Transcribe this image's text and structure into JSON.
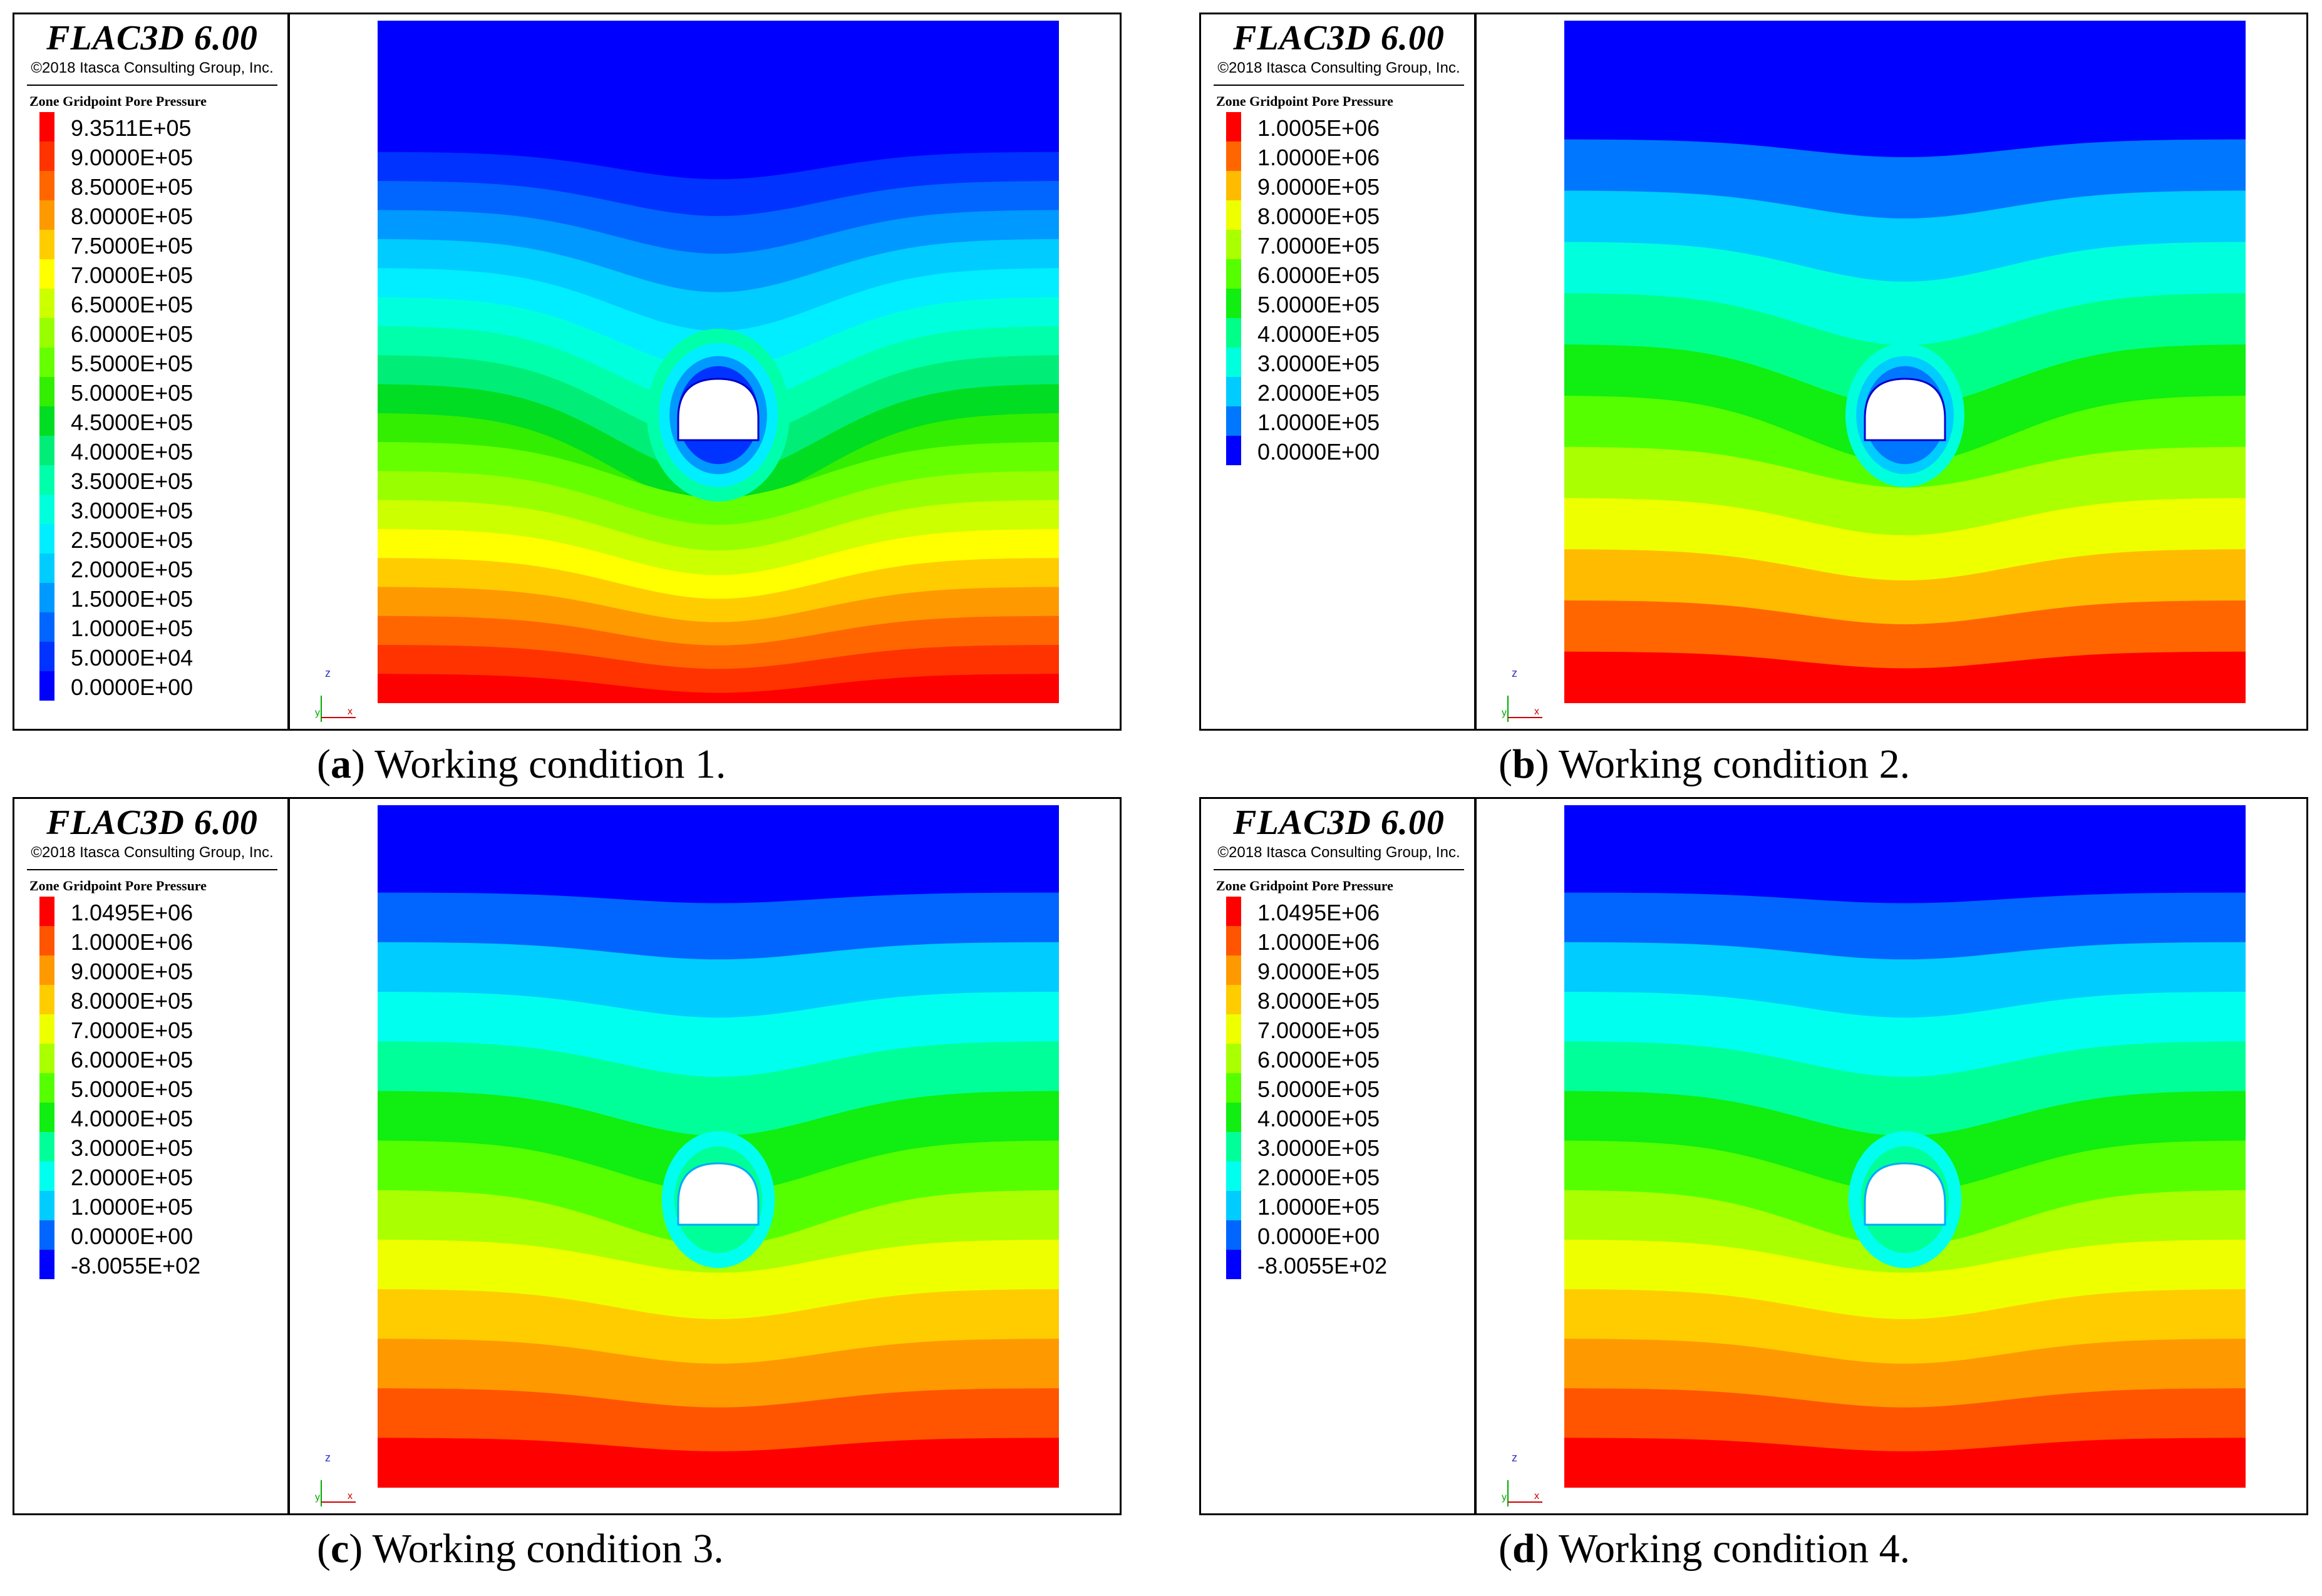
{
  "app": {
    "title": "FLAC3D 6.00",
    "copyright": "©2018 Itasca Consulting Group, Inc.",
    "legend_title": "Zone Gridpoint Pore Pressure"
  },
  "axes": {
    "z": "z",
    "y": "y",
    "x": "x"
  },
  "panels": [
    {
      "letter": "a",
      "caption": ") Working condition 1.",
      "legend": [
        "9.3511E+05",
        "9.0000E+05",
        "8.5000E+05",
        "8.0000E+05",
        "7.5000E+05",
        "7.0000E+05",
        "6.5000E+05",
        "6.0000E+05",
        "5.5000E+05",
        "5.0000E+05",
        "4.5000E+05",
        "4.0000E+05",
        "3.5000E+05",
        "3.0000E+05",
        "2.5000E+05",
        "2.0000E+05",
        "1.5000E+05",
        "1.0000E+05",
        "5.0000E+04",
        "0.0000E+00"
      ],
      "colors": [
        "#ff0000",
        "#ff3300",
        "#ff6600",
        "#ff9900",
        "#ffcc00",
        "#ffff00",
        "#ccff00",
        "#99ff00",
        "#66ff00",
        "#33ee00",
        "#00dd22",
        "#00ee77",
        "#00ffaa",
        "#00ffdd",
        "#00eeff",
        "#00ccff",
        "#0099ff",
        "#0066ff",
        "#0033ff",
        "#0000ff"
      ]
    },
    {
      "letter": "b",
      "caption": ") Working condition 2.",
      "legend": [
        "1.0005E+06",
        "1.0000E+06",
        "9.0000E+05",
        "8.0000E+05",
        "7.0000E+05",
        "6.0000E+05",
        "5.0000E+05",
        "4.0000E+05",
        "3.0000E+05",
        "2.0000E+05",
        "1.0000E+05",
        "0.0000E+00"
      ],
      "colors": [
        "#ff0000",
        "#ff6600",
        "#ffbb00",
        "#eeff00",
        "#aaff00",
        "#55ff00",
        "#11ee11",
        "#00ff88",
        "#00ffdd",
        "#00ccff",
        "#0077ff",
        "#0000ff"
      ]
    },
    {
      "letter": "c",
      "caption": ") Working condition 3.",
      "legend": [
        "1.0495E+06",
        "1.0000E+06",
        "9.0000E+05",
        "8.0000E+05",
        "7.0000E+05",
        "6.0000E+05",
        "5.0000E+05",
        "4.0000E+05",
        "3.0000E+05",
        "2.0000E+05",
        "1.0000E+05",
        "0.0000E+00",
        "-8.0055E+02"
      ],
      "colors": [
        "#ff0000",
        "#ff5500",
        "#ff9900",
        "#ffcc00",
        "#eeff00",
        "#aaff00",
        "#55ff00",
        "#11ee11",
        "#00ff99",
        "#00ffee",
        "#00ccff",
        "#0066ff",
        "#0000ff"
      ]
    },
    {
      "letter": "d",
      "caption": ") Working condition 4.",
      "legend": [
        "1.0495E+06",
        "1.0000E+06",
        "9.0000E+05",
        "8.0000E+05",
        "7.0000E+05",
        "6.0000E+05",
        "5.0000E+05",
        "4.0000E+05",
        "3.0000E+05",
        "2.0000E+05",
        "1.0000E+05",
        "0.0000E+00",
        "-8.0055E+02"
      ],
      "colors": [
        "#ff0000",
        "#ff5500",
        "#ff9900",
        "#ffcc00",
        "#eeff00",
        "#aaff00",
        "#55ff00",
        "#11ee11",
        "#00ff99",
        "#00ffee",
        "#00ccff",
        "#0066ff",
        "#0000ff"
      ]
    }
  ]
}
